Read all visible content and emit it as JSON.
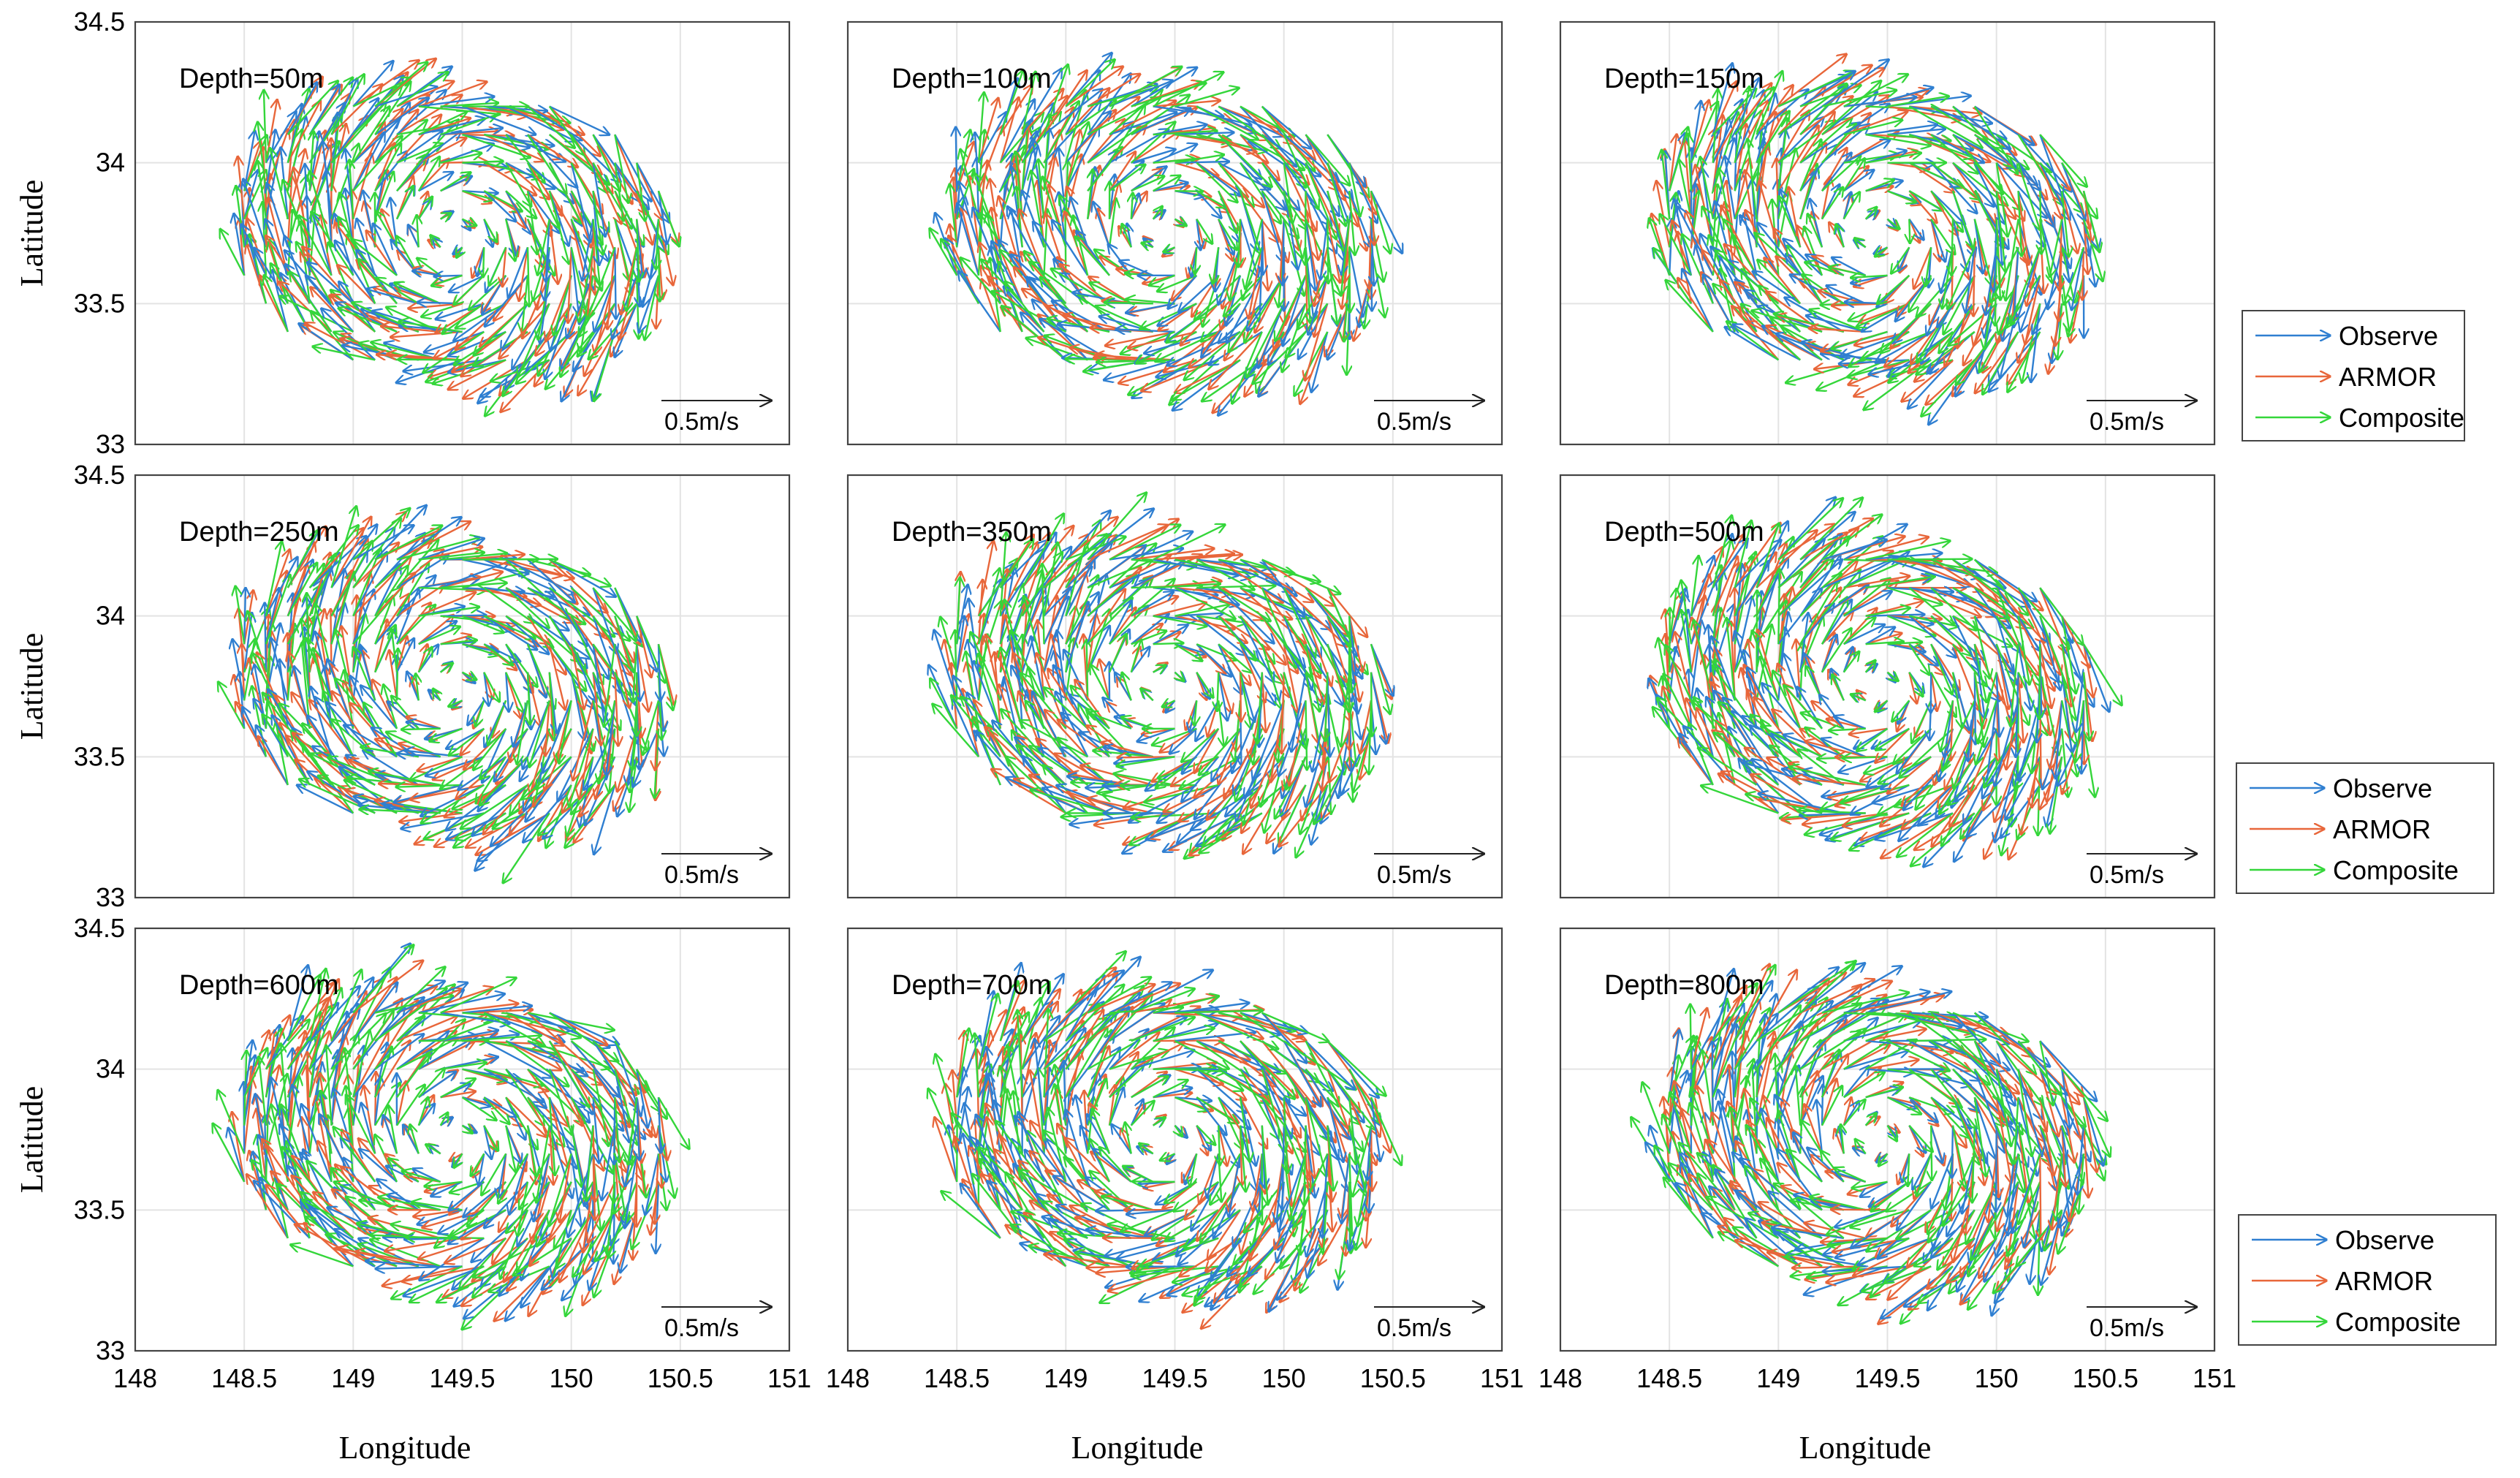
{
  "chart_data": {
    "type": "quiver",
    "xlabel": "Longitude",
    "ylabel": "Latitude",
    "xlim": [
      148,
      151
    ],
    "ylim": [
      33,
      34.5
    ],
    "xticks": [
      "148",
      "148.5",
      "149",
      "149.5",
      "150",
      "150.5",
      "151"
    ],
    "yticks": [
      "33",
      "33.5",
      "34",
      "34.5"
    ],
    "scale_label": "0.5m/s",
    "scale_speed": 0.5,
    "grid": true,
    "series": [
      {
        "name": "Observe",
        "color": "#2f7fd1"
      },
      {
        "name": "ARMOR",
        "color": "#e8663a"
      },
      {
        "name": "Composite",
        "color": "#34d63a"
      }
    ],
    "eddy": {
      "center_lon": 149.45,
      "center_lat": 33.75,
      "rotation": "anticyclonic",
      "lon_range": [
        148.5,
        150.4
      ],
      "lat_range": [
        33.2,
        34.2
      ]
    },
    "panels": [
      {
        "title": "Depth=50m",
        "depth_m": 50
      },
      {
        "title": "Depth=100m",
        "depth_m": 100
      },
      {
        "title": "Depth=150m",
        "depth_m": 150
      },
      {
        "title": "Depth=250m",
        "depth_m": 250
      },
      {
        "title": "Depth=350m",
        "depth_m": 350
      },
      {
        "title": "Depth=500m",
        "depth_m": 500
      },
      {
        "title": "Depth=600m",
        "depth_m": 600
      },
      {
        "title": "Depth=700m",
        "depth_m": 700
      },
      {
        "title": "Depth=800m",
        "depth_m": 800
      }
    ]
  }
}
